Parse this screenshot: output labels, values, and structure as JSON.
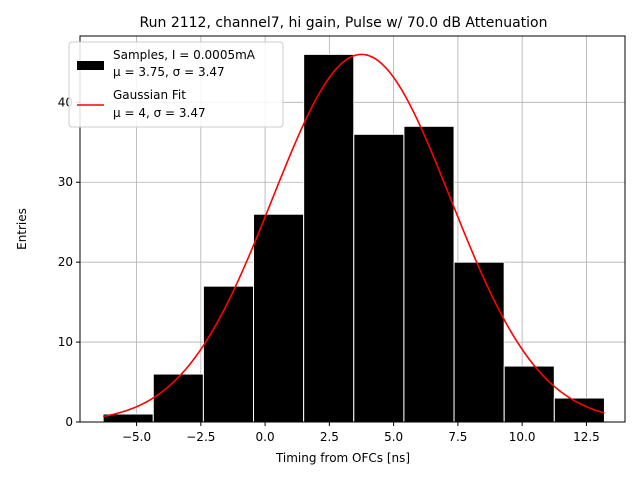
{
  "chart_data": {
    "type": "bar",
    "title": "Run 2112, channel7, hi gain, Pulse w/ 70.0 dB Attenuation",
    "xlabel": "Timing from OFCs [ns]",
    "ylabel": "Entries",
    "xlim": [
      -7.2,
      14.0
    ],
    "ylim": [
      0,
      48.3
    ],
    "grid": true,
    "legend_position": "top-left",
    "xticks": [
      -5.0,
      -2.5,
      0.0,
      2.5,
      5.0,
      7.5,
      10.0,
      12.5
    ],
    "xtick_labels": [
      "−5.0",
      "−2.5",
      "0.0",
      "2.5",
      "5.0",
      "7.5",
      "10.0",
      "12.5"
    ],
    "yticks": [
      0,
      10,
      20,
      30,
      40
    ],
    "ytick_labels": [
      "0",
      "10",
      "20",
      "30",
      "40"
    ],
    "histogram": {
      "name_line1": "Samples, I = 0.0005mA",
      "name_line2": "μ = 3.75, σ = 3.47",
      "color": "#000000",
      "edge_color": "#ffffff",
      "bin_edges": [
        -6.3,
        -4.35,
        -2.4,
        -0.45,
        1.5,
        3.45,
        5.4,
        7.35,
        9.3,
        11.25,
        13.2
      ],
      "counts": [
        1,
        6,
        17,
        26,
        46,
        36,
        37,
        20,
        7,
        3
      ]
    },
    "fit": {
      "name_line1": "Gaussian Fit",
      "name_line2": "μ = 4, σ = 3.47",
      "color": "#ff0000",
      "mu": 3.75,
      "sigma": 3.47,
      "amplitude": 46,
      "x_range": [
        -6.3,
        13.2
      ]
    }
  }
}
